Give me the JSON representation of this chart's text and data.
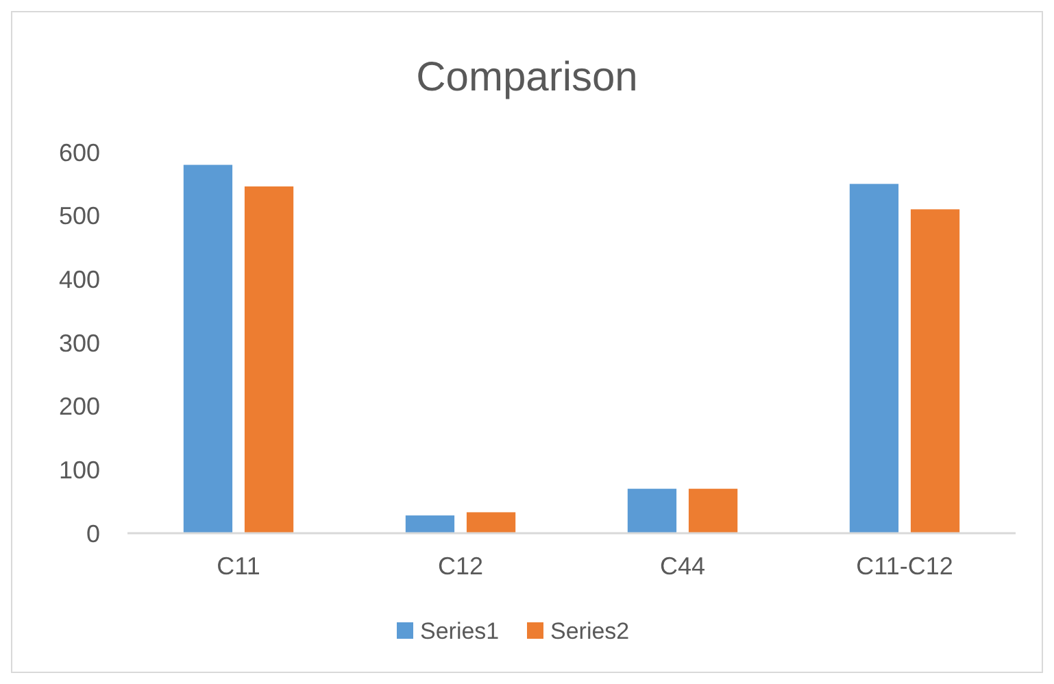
{
  "chart_data": {
    "type": "bar",
    "title": "Comparison",
    "categories": [
      "C11",
      "C12",
      "C44",
      "C11-C12"
    ],
    "series": [
      {
        "name": "Series1",
        "color": "#5b9bd5",
        "values": [
          580,
          28,
          70,
          550
        ]
      },
      {
        "name": "Series2",
        "color": "#ed7d31",
        "values": [
          546,
          33,
          70,
          510
        ]
      }
    ],
    "ylim": [
      0,
      600
    ],
    "yticks": [
      0,
      100,
      200,
      300,
      400,
      500,
      600
    ],
    "grid": false,
    "legend": "bottom"
  }
}
